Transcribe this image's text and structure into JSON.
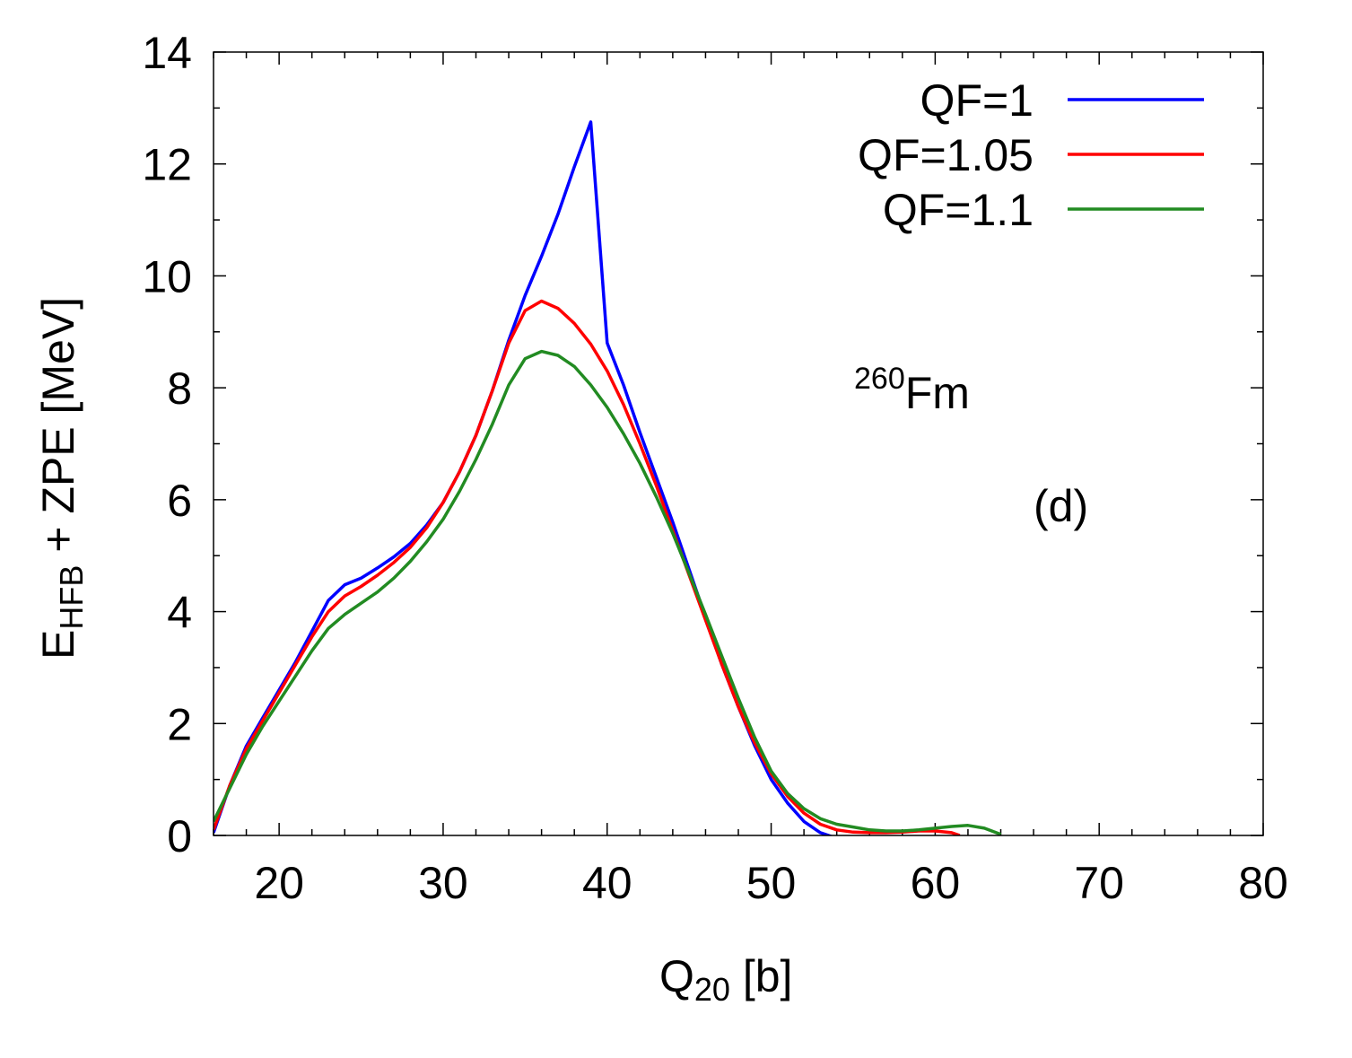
{
  "chart_data": {
    "type": "line",
    "title": "",
    "xlabel": {
      "main": "Q",
      "sub": "20",
      "suffix": " [b]"
    },
    "ylabel": {
      "main": "E",
      "sub": "HFB",
      "suffix": " + ZPE [MeV]"
    },
    "xlim": [
      16,
      80
    ],
    "ylim": [
      0,
      14
    ],
    "xticks": [
      20,
      30,
      40,
      50,
      60,
      70,
      80
    ],
    "xtick_labels": [
      "20",
      "30",
      "40",
      "50",
      "60",
      "70",
      "80"
    ],
    "yticks": [
      0,
      2,
      4,
      6,
      8,
      10,
      12,
      14
    ],
    "ytick_labels": [
      "0",
      "2",
      "4",
      "6",
      "8",
      "10",
      "12",
      "14"
    ],
    "grid": false,
    "legend_position": "top-right",
    "annotations": [
      {
        "id": "nucleus",
        "sup": "260",
        "text": "Fm"
      },
      {
        "id": "panel",
        "text": "(d)"
      }
    ],
    "series": [
      {
        "name": "QF=1",
        "color": "#0000ff",
        "x": [
          16,
          17,
          18,
          19,
          20,
          21,
          22,
          23,
          24,
          25,
          26,
          27,
          28,
          29,
          30,
          31,
          32,
          33,
          34,
          35,
          36,
          37,
          38,
          39,
          40,
          41,
          42,
          43,
          44,
          45,
          46,
          47,
          48,
          49,
          50,
          51,
          52,
          53,
          54
        ],
        "y": [
          0.05,
          0.9,
          1.6,
          2.1,
          2.6,
          3.1,
          3.65,
          4.2,
          4.48,
          4.6,
          4.78,
          4.98,
          5.22,
          5.55,
          5.95,
          6.5,
          7.15,
          7.95,
          8.85,
          9.65,
          10.35,
          11.1,
          11.95,
          12.75,
          8.8,
          8.05,
          7.2,
          6.4,
          5.6,
          4.75,
          3.9,
          3.05,
          2.3,
          1.6,
          1.0,
          0.58,
          0.25,
          0.05,
          -0.05
        ],
        "values_inferred": false
      },
      {
        "name": "QF=1.05",
        "color": "#ff0000",
        "x": [
          16,
          17,
          18,
          19,
          20,
          21,
          22,
          23,
          24,
          25,
          26,
          27,
          28,
          29,
          30,
          31,
          32,
          33,
          34,
          35,
          36,
          37,
          38,
          39,
          40,
          41,
          42,
          43,
          44,
          45,
          46,
          47,
          48,
          49,
          50,
          51,
          52,
          53,
          54,
          55,
          56,
          57,
          58,
          59,
          60,
          61,
          61.5
        ],
        "y": [
          0.1,
          0.9,
          1.55,
          2.05,
          2.55,
          3.05,
          3.55,
          4.0,
          4.28,
          4.45,
          4.65,
          4.88,
          5.15,
          5.5,
          5.95,
          6.5,
          7.15,
          7.95,
          8.8,
          9.38,
          9.55,
          9.42,
          9.15,
          8.78,
          8.3,
          7.7,
          7.0,
          6.25,
          5.45,
          4.65,
          3.85,
          3.05,
          2.3,
          1.65,
          1.1,
          0.7,
          0.4,
          0.2,
          0.1,
          0.06,
          0.05,
          0.05,
          0.06,
          0.08,
          0.08,
          0.05,
          0.0
        ],
        "values_inferred": false
      },
      {
        "name": "QF=1.1",
        "color": "#228b22",
        "x": [
          16,
          17,
          18,
          19,
          20,
          21,
          22,
          23,
          24,
          25,
          26,
          27,
          28,
          29,
          30,
          31,
          32,
          33,
          34,
          35,
          36,
          37,
          38,
          39,
          40,
          41,
          42,
          43,
          44,
          45,
          46,
          47,
          48,
          49,
          50,
          51,
          52,
          53,
          54,
          55,
          56,
          57,
          58,
          59,
          60,
          61,
          62,
          63,
          64
        ],
        "y": [
          0.25,
          0.85,
          1.45,
          1.95,
          2.4,
          2.85,
          3.3,
          3.7,
          3.95,
          4.15,
          4.35,
          4.6,
          4.9,
          5.25,
          5.65,
          6.15,
          6.72,
          7.35,
          8.05,
          8.52,
          8.65,
          8.58,
          8.38,
          8.05,
          7.65,
          7.18,
          6.65,
          6.05,
          5.4,
          4.68,
          3.95,
          3.2,
          2.45,
          1.75,
          1.15,
          0.75,
          0.48,
          0.3,
          0.2,
          0.15,
          0.1,
          0.08,
          0.08,
          0.1,
          0.13,
          0.16,
          0.18,
          0.13,
          0.02
        ],
        "values_inferred": false
      }
    ]
  }
}
